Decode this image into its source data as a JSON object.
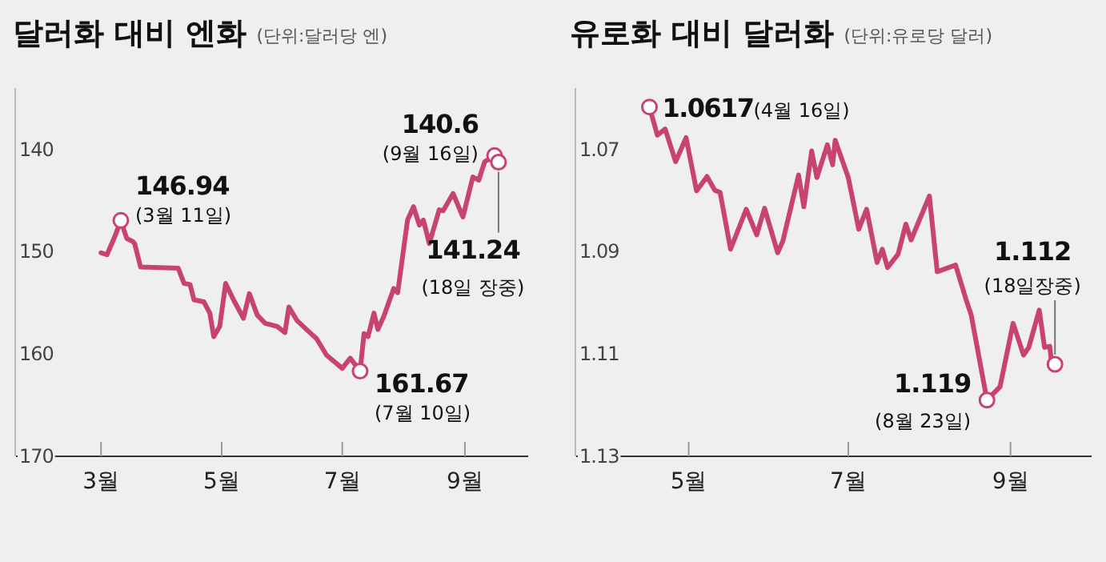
{
  "chart_data": [
    {
      "type": "line",
      "title": "달러화 대비 엔화",
      "subtitle": "(단위:달러당 엔)",
      "series": [
        {
          "color": "#c8436f",
          "x": [
            "--03-01",
            "--03-04",
            "--03-08",
            "--03-11",
            "--03-14",
            "--03-17",
            "--03-18",
            "--03-21",
            "--04-09",
            "--04-12",
            "--04-15",
            "--04-17",
            "--04-22",
            "--04-25",
            "--04-27",
            "--04-30",
            "--05-03",
            "--05-07",
            "--05-12",
            "--05-15",
            "--05-19",
            "--05-23",
            "--05-29",
            "--06-02",
            "--06-04",
            "--06-08",
            "--06-14",
            "--06-18",
            "--06-23",
            "--07-01",
            "--07-05",
            "--07-10",
            "--07-12",
            "--07-14",
            "--07-17",
            "--07-19",
            "--07-22",
            "--07-27",
            "--07-29",
            "--08-03",
            "--08-06",
            "--08-09",
            "--08-11",
            "--08-14",
            "--08-19",
            "--08-21",
            "--08-26",
            "--08-31",
            "--09-05",
            "--09-08",
            "--09-11",
            "--09-16",
            "--09-18"
          ],
          "values": [
            150.1,
            150.3,
            148.5,
            146.94,
            148.7,
            149.0,
            149.2,
            151.5,
            151.6,
            153.1,
            153.2,
            154.7,
            154.9,
            156.0,
            158.3,
            157.3,
            153.1,
            154.7,
            156.5,
            154.1,
            156.2,
            157.0,
            157.3,
            157.9,
            155.4,
            156.7,
            157.8,
            158.5,
            160.1,
            161.4,
            160.4,
            161.67,
            158.0,
            158.3,
            156.0,
            157.6,
            156.3,
            153.6,
            154.0,
            146.9,
            145.6,
            147.4,
            146.9,
            149.2,
            145.9,
            146.0,
            144.3,
            146.6,
            142.7,
            143.0,
            141.2,
            140.6,
            141.24
          ]
        }
      ],
      "xlim": [
        "--01-18",
        "--10-03"
      ],
      "xticks": [
        {
          "value": "--03-01",
          "label": "3월"
        },
        {
          "value": "--05-01",
          "label": "5월"
        },
        {
          "value": "--07-01",
          "label": "7월"
        },
        {
          "value": "--09-01",
          "label": "9월"
        }
      ],
      "ylim": [
        170,
        134
      ],
      "yticks": [
        140,
        150,
        160,
        170
      ],
      "annotations": [
        {
          "text": "146.94\n(3월 11일)",
          "x": "--03-11",
          "y": 146.94
        },
        {
          "text": "161.67\n(7월 10일)",
          "x": "--07-10",
          "y": 161.67
        },
        {
          "text": "140.6\n(9월 16일)",
          "x": "--09-16",
          "y": 140.6
        },
        {
          "text": "141.24\n(18일 장중)",
          "x": "--09-18",
          "y": 141.24
        }
      ]
    },
    {
      "type": "line",
      "title": "유로화 대비 달러화",
      "subtitle": "(단위:유로당 달러)",
      "series": [
        {
          "color": "#c8436f",
          "x": [
            "--04-16",
            "--04-19",
            "--04-22",
            "--04-26",
            "--04-30",
            "--05-04",
            "--05-08",
            "--05-11",
            "--05-13",
            "--05-17",
            "--05-23",
            "--05-27",
            "--05-30",
            "--06-04",
            "--06-06",
            "--06-12",
            "--06-14",
            "--06-17",
            "--06-19",
            "--06-23",
            "--06-25",
            "--06-26",
            "--07-01",
            "--07-05",
            "--07-08",
            "--07-12",
            "--07-14",
            "--07-16",
            "--07-20",
            "--07-23",
            "--07-25",
            "--08-01",
            "--08-04",
            "--08-11",
            "--08-15",
            "--08-17",
            "--08-23",
            "--08-28",
            "--09-02",
            "--09-06",
            "--09-08",
            "--09-12",
            "--09-14",
            "--09-16",
            "--09-17",
            "--09-18"
          ],
          "values": [
            1.0617,
            1.0672,
            1.066,
            1.0724,
            1.0677,
            1.0781,
            1.0753,
            1.078,
            1.0784,
            1.0895,
            1.0817,
            1.0867,
            1.0815,
            1.0902,
            1.0879,
            1.075,
            1.0812,
            1.0703,
            1.0755,
            1.0691,
            1.073,
            1.0682,
            1.0755,
            1.0856,
            1.0817,
            1.0921,
            1.0895,
            1.0931,
            1.0905,
            1.0846,
            1.0877,
            1.0791,
            1.0939,
            1.0926,
            1.0993,
            1.1024,
            1.119,
            1.1164,
            1.104,
            1.1102,
            1.1087,
            1.1014,
            1.1087,
            1.1085,
            1.1128,
            1.112
          ]
        }
      ],
      "xlim": [
        "--03-19",
        "--10-02"
      ],
      "xticks": [
        {
          "value": "--05-01",
          "label": "5월"
        },
        {
          "value": "--07-01",
          "label": "7월"
        },
        {
          "value": "--09-01",
          "label": "9월"
        }
      ],
      "ylim": [
        1.13,
        1.058
      ],
      "yticks": [
        1.07,
        1.09,
        1.11,
        1.13
      ],
      "annotations": [
        {
          "text": "1.0617(4월 16일)",
          "x": "--04-16",
          "y": 1.0617
        },
        {
          "text": "1.119\n(8월 23일)",
          "x": "--08-23",
          "y": 1.119
        },
        {
          "text": "1.112\n(18일장중)",
          "x": "--09-18",
          "y": 1.112
        }
      ]
    }
  ]
}
